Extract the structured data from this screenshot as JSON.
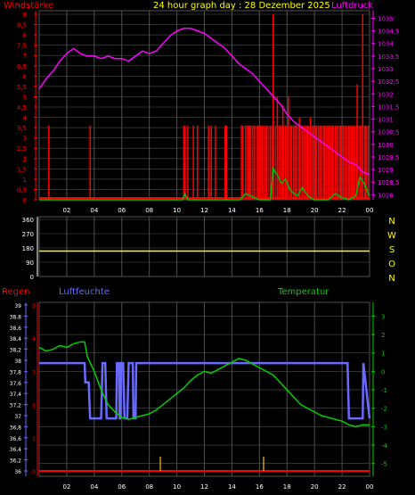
{
  "colors": {
    "background": "#000000",
    "grid": "#505050",
    "wind": "#ff0000",
    "gust": "#00c000",
    "pressure": "#ff00ff",
    "direction": "#ffff00",
    "rain": "#ff0000",
    "humidity": "#6a6aff",
    "temperature": "#00d000",
    "title": "#ffff00",
    "axis": "#ffffff"
  },
  "header": {
    "left_label": "Windstärke",
    "title": "24 hour graph day : 28 Dezember 2025",
    "right_label": "Luftdruck"
  },
  "lower_header": {
    "rain_label": "Regen",
    "humidity_label": "Luftfeuchte",
    "temperature_label": "Temperatur"
  },
  "chart_data": [
    {
      "type": "line",
      "name": "wind-pressure",
      "x_ticks": [
        "02",
        "04",
        "06",
        "08",
        "10",
        "12",
        "14",
        "16",
        "18",
        "20",
        "22",
        "00"
      ],
      "xlim": [
        0,
        24
      ],
      "y_left_ticks": [
        "9",
        "8,5",
        "8",
        "7,5",
        "7",
        "6,5",
        "6",
        "5,5",
        "5",
        "4,5",
        "4",
        "3,5",
        "3",
        "2,5",
        "2",
        "1,5",
        "1",
        "0,5",
        "0"
      ],
      "ylim_left": [
        0,
        9
      ],
      "y_right_ticks": [
        "1035",
        "1034,5",
        "1034",
        "1033,5",
        "1033",
        "1032,5",
        "1032",
        "1031,5",
        "1031",
        "1030,5",
        "1030",
        "1029,5",
        "1029",
        "1028,5",
        "1028"
      ],
      "ylim_right": [
        1027.8,
        1035.3
      ],
      "pressure": {
        "x": [
          0,
          0.5,
          1,
          1.5,
          2,
          2.5,
          3,
          3.5,
          4,
          4.5,
          5,
          5.5,
          6,
          6.5,
          7,
          7.5,
          8,
          8.5,
          9,
          9.5,
          10,
          10.5,
          11,
          11.5,
          12,
          12.5,
          13,
          13.5,
          14,
          14.5,
          15,
          15.5,
          16,
          16.5,
          17,
          17.5,
          18,
          18.5,
          19,
          19.5,
          20,
          20.5,
          21,
          21.5,
          22,
          22.5,
          23,
          23.5,
          24
        ],
        "values": [
          1032.2,
          1032.6,
          1032.9,
          1033.3,
          1033.6,
          1033.8,
          1033.6,
          1033.5,
          1033.5,
          1033.4,
          1033.5,
          1033.4,
          1033.4,
          1033.3,
          1033.5,
          1033.7,
          1033.6,
          1033.7,
          1034.0,
          1034.3,
          1034.5,
          1034.6,
          1034.6,
          1034.5,
          1034.4,
          1034.2,
          1034.0,
          1033.8,
          1033.5,
          1033.2,
          1033.0,
          1032.8,
          1032.5,
          1032.2,
          1031.9,
          1031.6,
          1031.2,
          1030.9,
          1030.7,
          1030.5,
          1030.3,
          1030.1,
          1029.9,
          1029.7,
          1029.5,
          1029.3,
          1029.2,
          1028.9,
          1028.8
        ]
      },
      "wind_spikes": {
        "x": [
          0.7,
          3.7,
          10.5,
          10.6,
          10.8,
          11.2,
          11.5,
          12.3,
          12.5,
          12.8,
          13.5,
          13.6,
          14.7,
          14.8,
          15.0,
          15.2,
          15.3,
          15.6,
          15.9,
          16.2,
          16.5,
          16.8,
          17.0,
          17.3,
          17.5,
          17.7,
          17.9,
          18.1,
          18.3,
          18.5,
          18.7,
          18.9,
          19.1,
          19.3,
          19.5,
          19.7,
          19.9,
          20.1,
          20.3,
          20.5,
          20.7,
          20.9,
          21.1,
          21.3,
          21.5,
          21.7,
          21.9,
          22.1,
          22.3,
          22.5,
          22.7,
          22.9,
          23.1,
          23.3,
          23.5,
          23.7,
          23.9
        ],
        "values": [
          3.6,
          3.6,
          3.6,
          3.6,
          3.6,
          3.6,
          3.6,
          3.6,
          3.6,
          3.6,
          3.6,
          3.6,
          3.6,
          3.6,
          3.6,
          3.6,
          3.6,
          3.6,
          3.6,
          3.6,
          3.6,
          3.6,
          9.0,
          5.0,
          3.6,
          4.6,
          3.6,
          5.0,
          3.6,
          3.6,
          3.6,
          4.0,
          3.6,
          3.6,
          3.6,
          4.0,
          3.6,
          3.6,
          3.6,
          3.6,
          3.6,
          3.6,
          3.6,
          3.6,
          3.6,
          3.6,
          3.6,
          3.6,
          3.6,
          3.6,
          3.6,
          3.6,
          5.6,
          3.6,
          9.0,
          3.6,
          3.6
        ]
      },
      "gust": {
        "x": [
          0,
          10.4,
          10.6,
          10.8,
          14.6,
          15.0,
          16.0,
          16.8,
          17.0,
          17.3,
          17.6,
          17.9,
          18.2,
          18.5,
          18.8,
          19.1,
          19.4,
          19.7,
          20.0,
          20.3,
          20.6,
          21.0,
          21.5,
          22.0,
          22.5,
          23.0,
          23.3,
          23.6,
          23.9,
          24.0
        ],
        "values": [
          0,
          0,
          0.3,
          0,
          0,
          0.3,
          0,
          0,
          1.5,
          1.2,
          0.8,
          1.0,
          0.5,
          0.3,
          0.2,
          0.6,
          0.3,
          0.1,
          0.0,
          0.0,
          0.0,
          0.0,
          0.3,
          0.1,
          0.0,
          0.2,
          1.1,
          0.8,
          0.3,
          0.2
        ]
      }
    },
    {
      "type": "line",
      "name": "wind-direction",
      "x_ticks": [
        "02",
        "04",
        "06",
        "08",
        "10",
        "12",
        "14",
        "16",
        "18",
        "20",
        "22",
        "00"
      ],
      "xlim": [
        0,
        24
      ],
      "y_ticks": [
        "360",
        "270",
        "180",
        "90",
        "0"
      ],
      "ylim": [
        0,
        360
      ],
      "direction_labels": [
        "N",
        "W",
        "S",
        "O",
        "N"
      ],
      "values": [
        160,
        160
      ]
    },
    {
      "type": "line",
      "name": "rain-humidity-temperature",
      "x_ticks": [
        "02",
        "04",
        "06",
        "08",
        "10",
        "12",
        "14",
        "16",
        "18",
        "20",
        "22",
        "00"
      ],
      "xlim": [
        0,
        24
      ],
      "y_rain_ticks": [
        "5",
        "4",
        "3",
        "2",
        "1",
        "0"
      ],
      "y_humidity_ticks": [
        "39",
        "38,8",
        "38,6",
        "38,4",
        "38,2",
        "38",
        "37,8",
        "37,6",
        "37,4",
        "37,2",
        "37",
        "36,8",
        "36,6",
        "36,4",
        "36,2",
        "36"
      ],
      "ylim_humidity": [
        96,
        99
      ],
      "y_temperature_ticks": [
        "3",
        "2",
        "1",
        "0",
        "-1",
        "-2",
        "-3",
        "-4",
        "-5"
      ],
      "ylim_temperature": [
        -5.4,
        3.6
      ],
      "humidity": {
        "x": [
          0,
          3.3,
          3.35,
          3.6,
          3.65,
          3.7,
          3.75,
          4.0,
          4.1,
          4.5,
          4.6,
          4.8,
          4.9,
          5.3,
          5.4,
          5.6,
          5.65,
          5.8,
          5.85,
          5.9,
          5.95,
          6.1,
          6.2,
          6.4,
          6.5,
          6.8,
          6.85,
          7.0,
          7.05,
          7.2,
          7.3,
          22.4,
          22.5,
          23.2,
          23.3,
          23.5,
          23.55,
          24.0
        ],
        "values": [
          97.95,
          97.95,
          97.6,
          97.6,
          97.25,
          96.95,
          96.95,
          96.95,
          96.95,
          96.95,
          97.95,
          97.95,
          96.95,
          96.95,
          96.95,
          96.95,
          97.95,
          97.95,
          96.95,
          96.95,
          97.95,
          97.95,
          96.95,
          96.95,
          97.95,
          97.95,
          96.95,
          96.95,
          97.95,
          97.95,
          97.95,
          97.95,
          96.95,
          96.95,
          96.95,
          96.95,
          97.95,
          96.95
        ]
      },
      "temperature": {
        "x": [
          0,
          0.5,
          1,
          1.5,
          2,
          2.5,
          3,
          3.3,
          3.5,
          4,
          4.5,
          5,
          5.5,
          6,
          6.5,
          7,
          7.5,
          8,
          8.5,
          9,
          9.5,
          10,
          10.5,
          11,
          11.5,
          12,
          12.5,
          13,
          13.5,
          14,
          14.5,
          15,
          15.5,
          16,
          16.5,
          17,
          17.5,
          18,
          18.5,
          19,
          19.5,
          20,
          20.5,
          21,
          21.5,
          22,
          22.5,
          23,
          23.5,
          24
        ],
        "values": [
          1.3,
          1.1,
          1.2,
          1.4,
          1.3,
          1.5,
          1.6,
          1.6,
          0.8,
          0.0,
          -1.0,
          -1.8,
          -2.2,
          -2.5,
          -2.6,
          -2.5,
          -2.4,
          -2.3,
          -2.1,
          -1.8,
          -1.5,
          -1.2,
          -0.9,
          -0.5,
          -0.2,
          0.0,
          -0.1,
          0.1,
          0.3,
          0.5,
          0.7,
          0.6,
          0.4,
          0.2,
          0.0,
          -0.2,
          -0.6,
          -1.0,
          -1.4,
          -1.8,
          -2.0,
          -2.2,
          -2.4,
          -2.5,
          -2.6,
          -2.7,
          -2.9,
          -3.0,
          -2.9,
          -2.9
        ]
      },
      "rain": {
        "x": [
          8.8,
          16.3
        ],
        "values": [
          0.5,
          0.5
        ]
      }
    }
  ]
}
